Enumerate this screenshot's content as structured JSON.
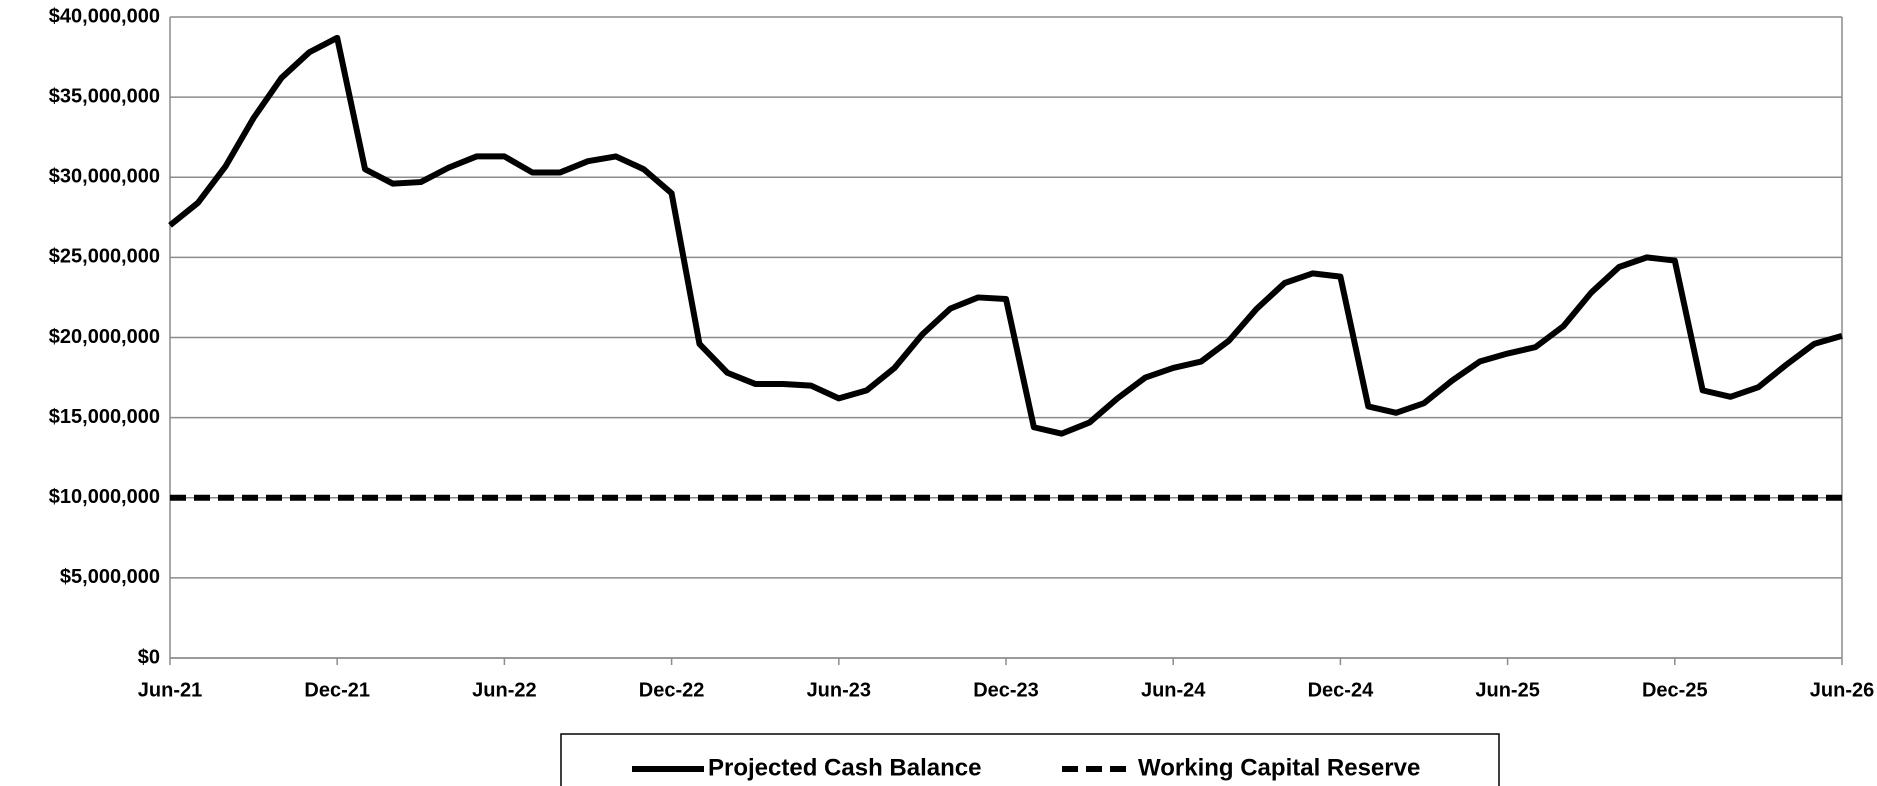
{
  "chart_data": {
    "type": "line",
    "categories": [
      "Jun-21",
      null,
      null,
      null,
      null,
      null,
      "Dec-21",
      null,
      null,
      null,
      null,
      null,
      "Jun-22",
      null,
      null,
      null,
      null,
      null,
      "Dec-22",
      null,
      null,
      null,
      null,
      null,
      "Jun-23",
      null,
      null,
      null,
      null,
      null,
      "Dec-23",
      null,
      null,
      null,
      null,
      null,
      "Jun-24",
      null,
      null,
      null,
      null,
      null,
      "Dec-24",
      null,
      null,
      null,
      null,
      null,
      "Jun-25",
      null,
      null,
      null,
      null,
      null,
      "Dec-25",
      null,
      null,
      null,
      null,
      null,
      "Jun-26"
    ],
    "series": [
      {
        "name": "Projected Cash Balance",
        "color": "#000000",
        "dash": false,
        "values": [
          27000000,
          28400000,
          30700000,
          33700000,
          36200000,
          37800000,
          38700000,
          30500000,
          29600000,
          29700000,
          30600000,
          31300000,
          31300000,
          30300000,
          30300000,
          31000000,
          31300000,
          30500000,
          29000000,
          19600000,
          17800000,
          17100000,
          17100000,
          17000000,
          16200000,
          16700000,
          18100000,
          20200000,
          21800000,
          22500000,
          22400000,
          14400000,
          14000000,
          14700000,
          16200000,
          17500000,
          18100000,
          18500000,
          19800000,
          21800000,
          23400000,
          24000000,
          23800000,
          15700000,
          15300000,
          15900000,
          17300000,
          18500000,
          19000000,
          19400000,
          20700000,
          22800000,
          24400000,
          25000000,
          24800000,
          16700000,
          16300000,
          16900000,
          18300000,
          19600000,
          20100000
        ]
      },
      {
        "name": "Working Capital Reserve",
        "color": "#000000",
        "dash": true,
        "values": [
          10000000,
          10000000,
          10000000,
          10000000,
          10000000,
          10000000,
          10000000,
          10000000,
          10000000,
          10000000,
          10000000,
          10000000,
          10000000,
          10000000,
          10000000,
          10000000,
          10000000,
          10000000,
          10000000,
          10000000,
          10000000,
          10000000,
          10000000,
          10000000,
          10000000,
          10000000,
          10000000,
          10000000,
          10000000,
          10000000,
          10000000,
          10000000,
          10000000,
          10000000,
          10000000,
          10000000,
          10000000,
          10000000,
          10000000,
          10000000,
          10000000,
          10000000,
          10000000,
          10000000,
          10000000,
          10000000,
          10000000,
          10000000,
          10000000,
          10000000,
          10000000,
          10000000,
          10000000,
          10000000,
          10000000,
          10000000,
          10000000,
          10000000,
          10000000,
          10000000,
          10000000
        ]
      }
    ],
    "ylim": [
      0,
      40000000
    ],
    "yticks": [
      {
        "value": 0,
        "label": "$0"
      },
      {
        "value": 5000000,
        "label": "$5,000,000"
      },
      {
        "value": 10000000,
        "label": "$10,000,000"
      },
      {
        "value": 15000000,
        "label": "$15,000,000"
      },
      {
        "value": 20000000,
        "label": "$20,000,000"
      },
      {
        "value": 25000000,
        "label": "$25,000,000"
      },
      {
        "value": 30000000,
        "label": "$30,000,000"
      },
      {
        "value": 35000000,
        "label": "$35,000,000"
      },
      {
        "value": 40000000,
        "label": "$40,000,000"
      }
    ],
    "grid": true,
    "legend": "bottom"
  }
}
